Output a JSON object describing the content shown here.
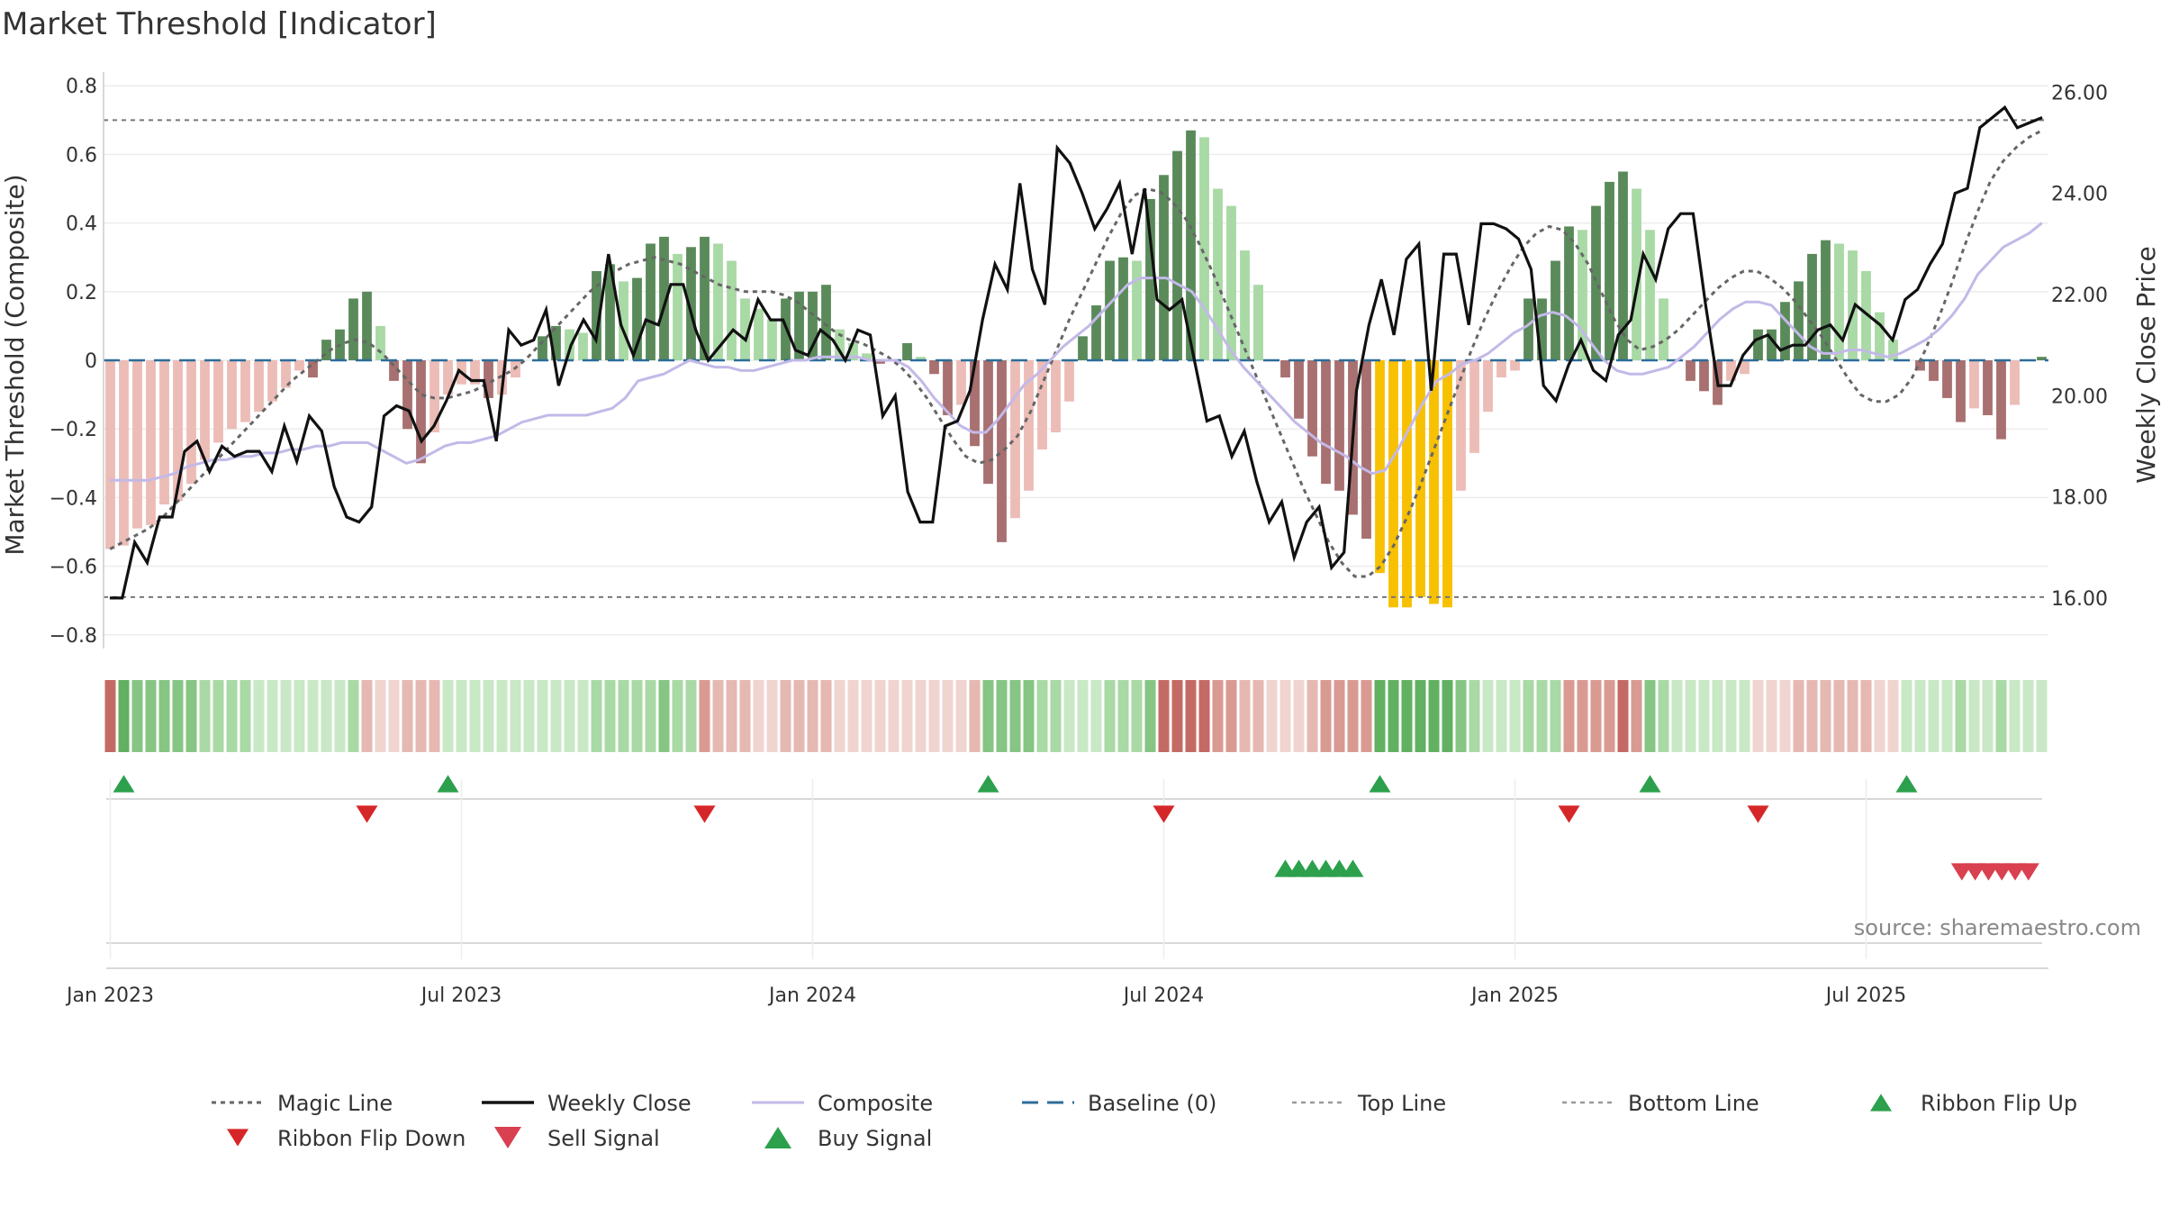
{
  "title": "Market Threshold [Indicator]",
  "source": "source: sharemaestro.com",
  "chart_data": {
    "type": "bar",
    "title": "Market Threshold [Indicator]",
    "x_tick_labels": [
      "Jan 2023",
      "Jul 2023",
      "Jan 2024",
      "Jul 2024",
      "Jan 2025",
      "Jul 2025"
    ],
    "x_tick_weeks": [
      1,
      27,
      53,
      79,
      105,
      131
    ],
    "weeks": 144,
    "left_axis": {
      "label": "Market Threshold (Composite)",
      "ylim": [
        -0.84,
        0.84
      ],
      "ticks": [
        "0.8",
        "0.6",
        "0.4",
        "0.2",
        "0",
        "−0.2",
        "−0.4",
        "−0.6",
        "−0.8"
      ],
      "tick_values": [
        0.8,
        0.6,
        0.4,
        0.2,
        0,
        -0.2,
        -0.4,
        -0.6,
        -0.8
      ]
    },
    "right_axis": {
      "label": "Weekly Close Price",
      "ylim": [
        15.0,
        26.4
      ],
      "ticks": [
        "26.00",
        "24.00",
        "22.00",
        "20.00",
        "18.00",
        "16.00"
      ],
      "tick_values": [
        26,
        24,
        22,
        20,
        18,
        16
      ]
    },
    "top_line": 0.7,
    "bottom_line": -0.69,
    "histogram": [
      -0.55,
      -0.54,
      -0.49,
      -0.48,
      -0.42,
      -0.41,
      -0.36,
      -0.29,
      -0.24,
      -0.2,
      -0.18,
      -0.15,
      -0.12,
      -0.08,
      -0.03,
      -0.05,
      0.06,
      0.09,
      0.18,
      0.2,
      0.1,
      -0.06,
      -0.2,
      -0.3,
      -0.21,
      -0.1,
      -0.07,
      -0.07,
      -0.11,
      -0.1,
      -0.05,
      0.0,
      0.07,
      0.1,
      0.09,
      0.08,
      0.26,
      0.28,
      0.23,
      0.24,
      0.34,
      0.36,
      0.31,
      0.33,
      0.36,
      0.34,
      0.29,
      0.18,
      0.15,
      0.12,
      0.18,
      0.2,
      0.2,
      0.22,
      0.09,
      0.05,
      0.02,
      -0.01,
      0.0,
      0.05,
      0.01,
      -0.04,
      -0.16,
      -0.13,
      -0.25,
      -0.36,
      -0.53,
      -0.46,
      -0.38,
      -0.26,
      -0.21,
      -0.12,
      0.07,
      0.16,
      0.29,
      0.3,
      0.29,
      0.47,
      0.54,
      0.61,
      0.67,
      0.65,
      0.5,
      0.45,
      0.32,
      0.22,
      0.0,
      -0.05,
      -0.17,
      -0.28,
      -0.36,
      -0.38,
      -0.45,
      -0.52,
      -0.62,
      -0.72,
      -0.72,
      -0.69,
      -0.71,
      -0.72,
      -0.38,
      -0.27,
      -0.15,
      -0.05,
      -0.03,
      0.18,
      0.18,
      0.29,
      0.39,
      0.38,
      0.45,
      0.52,
      0.55,
      0.5,
      0.38,
      0.18,
      0.0,
      -0.06,
      -0.09,
      -0.13,
      -0.06,
      -0.04,
      0.09,
      0.09,
      0.17,
      0.23,
      0.31,
      0.35,
      0.34,
      0.32,
      0.26,
      0.14,
      0.06,
      0.0,
      -0.03,
      -0.06,
      -0.11,
      -0.18,
      -0.14,
      -0.16,
      -0.23,
      -0.13,
      0.0,
      0.01
    ],
    "weekly_close": [
      16.0,
      16.0,
      17.1,
      16.7,
      17.6,
      17.6,
      18.9,
      19.1,
      18.5,
      19.0,
      18.8,
      18.9,
      18.9,
      18.5,
      19.4,
      18.7,
      19.6,
      19.3,
      18.2,
      17.6,
      17.5,
      17.8,
      19.6,
      19.8,
      19.7,
      19.1,
      19.4,
      19.9,
      20.5,
      20.3,
      20.3,
      19.1,
      21.3,
      21.0,
      21.1,
      21.7,
      20.2,
      21.0,
      21.5,
      21.1,
      22.8,
      21.4,
      20.8,
      21.5,
      21.4,
      22.2,
      22.2,
      21.3,
      20.7,
      21.0,
      21.3,
      21.1,
      21.9,
      21.5,
      21.5,
      20.9,
      20.8,
      21.3,
      21.1,
      20.7,
      21.3,
      21.2,
      19.6,
      20.0,
      18.1,
      17.5,
      17.5,
      19.4,
      19.5,
      20.1,
      21.5,
      22.6,
      22.1,
      24.2,
      22.5,
      21.8,
      24.9,
      24.6,
      24.0,
      23.3,
      23.7,
      24.2,
      22.8,
      24.1,
      21.9,
      21.7,
      21.9,
      20.7,
      19.5,
      19.6,
      18.8,
      19.3,
      18.3,
      17.5,
      17.9,
      16.8,
      17.5,
      17.8,
      16.6,
      16.9,
      20.1,
      21.4,
      22.3,
      21.2,
      22.7,
      23.0,
      20.1,
      22.8,
      22.8,
      21.4,
      23.4,
      23.4,
      23.3,
      23.1,
      22.5,
      20.2,
      19.9,
      20.6,
      21.1,
      20.5,
      20.3,
      21.2,
      21.5,
      22.8,
      22.3,
      23.3,
      23.6,
      23.6,
      21.8,
      20.2,
      20.2,
      20.8,
      21.1,
      21.2,
      20.9,
      21.0,
      21.0,
      21.3,
      21.4,
      21.1,
      21.8,
      21.6,
      21.4,
      21.1,
      21.9,
      22.1,
      22.6,
      23.0,
      24.0,
      24.1,
      25.3,
      25.5,
      25.7,
      25.3,
      25.4,
      25.5
    ],
    "magic_line": [
      -0.55,
      -0.53,
      -0.51,
      -0.49,
      -0.46,
      -0.42,
      -0.38,
      -0.34,
      -0.3,
      -0.26,
      -0.22,
      -0.18,
      -0.14,
      -0.1,
      -0.06,
      -0.03,
      0.0,
      0.03,
      0.05,
      0.06,
      0.05,
      0.02,
      -0.02,
      -0.06,
      -0.1,
      -0.11,
      -0.11,
      -0.1,
      -0.09,
      -0.07,
      -0.05,
      -0.03,
      0.0,
      0.04,
      0.08,
      0.12,
      0.16,
      0.2,
      0.23,
      0.26,
      0.28,
      0.29,
      0.3,
      0.29,
      0.28,
      0.26,
      0.24,
      0.22,
      0.21,
      0.2,
      0.2,
      0.2,
      0.19,
      0.17,
      0.14,
      0.11,
      0.08,
      0.06,
      0.05,
      0.03,
      0.01,
      -0.02,
      -0.06,
      -0.11,
      -0.17,
      -0.23,
      -0.28,
      -0.3,
      -0.29,
      -0.26,
      -0.22,
      -0.15,
      -0.06,
      0.03,
      0.12,
      0.2,
      0.28,
      0.36,
      0.43,
      0.48,
      0.5,
      0.49,
      0.46,
      0.41,
      0.34,
      0.26,
      0.17,
      0.08,
      -0.01,
      -0.1,
      -0.19,
      -0.28,
      -0.37,
      -0.45,
      -0.53,
      -0.59,
      -0.63,
      -0.63,
      -0.6,
      -0.54,
      -0.46,
      -0.37,
      -0.27,
      -0.17,
      -0.07,
      0.03,
      0.12,
      0.2,
      0.27,
      0.33,
      0.37,
      0.39,
      0.38,
      0.34,
      0.28,
      0.2,
      0.12,
      0.06,
      0.03,
      0.04,
      0.06,
      0.09,
      0.13,
      0.17,
      0.21,
      0.24,
      0.26,
      0.26,
      0.24,
      0.21,
      0.17,
      0.12,
      0.07,
      0.01,
      -0.05,
      -0.1,
      -0.12,
      -0.12,
      -0.1,
      -0.05,
      0.03,
      0.12,
      0.22,
      0.33,
      0.43,
      0.52,
      0.58,
      0.62,
      0.65,
      0.67
    ],
    "composite": [
      -0.35,
      -0.35,
      -0.35,
      -0.35,
      -0.34,
      -0.33,
      -0.31,
      -0.3,
      -0.29,
      -0.29,
      -0.28,
      -0.28,
      -0.27,
      -0.27,
      -0.26,
      -0.26,
      -0.25,
      -0.25,
      -0.24,
      -0.24,
      -0.24,
      -0.26,
      -0.28,
      -0.3,
      -0.29,
      -0.27,
      -0.25,
      -0.24,
      -0.24,
      -0.23,
      -0.22,
      -0.2,
      -0.18,
      -0.17,
      -0.16,
      -0.16,
      -0.16,
      -0.16,
      -0.15,
      -0.14,
      -0.11,
      -0.06,
      -0.05,
      -0.04,
      -0.02,
      0.0,
      -0.01,
      -0.02,
      -0.02,
      -0.03,
      -0.03,
      -0.02,
      -0.01,
      0.0,
      0.0,
      0.01,
      0.01,
      0.01,
      0.01,
      0.0,
      0.0,
      0.0,
      -0.02,
      -0.06,
      -0.11,
      -0.15,
      -0.19,
      -0.21,
      -0.21,
      -0.17,
      -0.12,
      -0.07,
      -0.04,
      0.0,
      0.04,
      0.07,
      0.1,
      0.14,
      0.18,
      0.22,
      0.24,
      0.24,
      0.24,
      0.22,
      0.2,
      0.15,
      0.09,
      0.03,
      -0.02,
      -0.06,
      -0.1,
      -0.14,
      -0.18,
      -0.21,
      -0.24,
      -0.26,
      -0.28,
      -0.31,
      -0.33,
      -0.32,
      -0.26,
      -0.19,
      -0.12,
      -0.06,
      -0.04,
      -0.01,
      0.0,
      0.02,
      0.05,
      0.08,
      0.1,
      0.13,
      0.14,
      0.13,
      0.1,
      0.05,
      0.0,
      -0.03,
      -0.04,
      -0.04,
      -0.03,
      -0.02,
      0.01,
      0.04,
      0.08,
      0.12,
      0.15,
      0.17,
      0.17,
      0.16,
      0.12,
      0.08,
      0.04,
      0.02,
      0.02,
      0.03,
      0.03,
      0.02,
      0.01,
      0.02,
      0.04,
      0.06,
      0.09,
      0.13,
      0.18,
      0.25,
      0.29,
      0.33,
      0.35,
      0.37,
      0.4
    ],
    "ribbon_states": [
      "up",
      "down"
    ],
    "ribbon_flip_up_weeks": [
      2,
      26,
      66,
      95,
      115,
      134
    ],
    "ribbon_flip_down_weeks": [
      20,
      45,
      79,
      109,
      123
    ],
    "buy_signal_weeks": [
      88,
      89,
      90,
      91,
      92,
      93
    ],
    "sell_signal_weeks": [
      140,
      141,
      142,
      143,
      144,
      145
    ],
    "colors": {
      "up_strong": "#5a8a5a",
      "up_light": "#a9d9a5",
      "down_strong": "#a87070",
      "down_light": "#ecbcb6",
      "extreme": "#f7c000",
      "close": "#111111",
      "composite": "#c3b9e8",
      "magic": "#666666",
      "baseline": "#2c6d9a",
      "flip_up": "#2ca04c",
      "flip_down": "#d62728",
      "buy": "#2ca04c",
      "sell": "#d94050"
    },
    "legend": {
      "items": [
        "Magic Line",
        "Weekly Close",
        "Composite",
        "Baseline (0)",
        "Top Line",
        "Bottom Line",
        "Ribbon Flip Up",
        "Ribbon Flip Down",
        "Sell Signal",
        "Buy Signal"
      ]
    }
  }
}
